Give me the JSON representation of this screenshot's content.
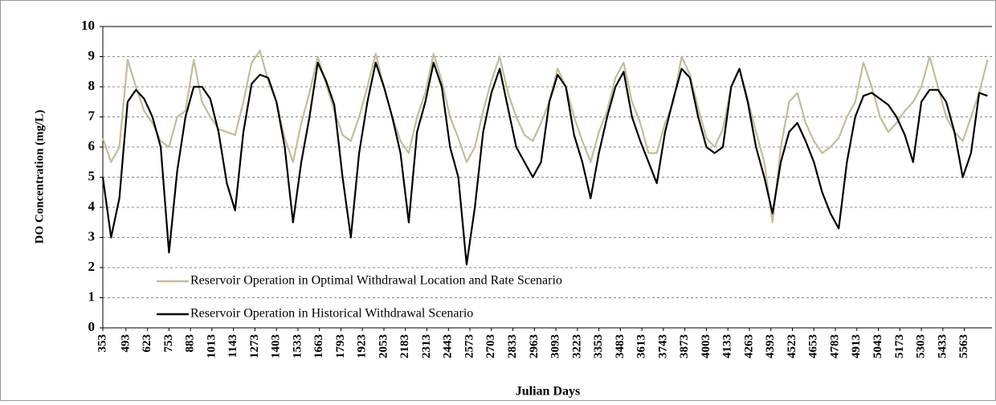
{
  "chart_data": {
    "type": "line",
    "xlabel": "Julian Days",
    "ylabel": "DO Concentration (mg/L)",
    "x": [
      353,
      403,
      453,
      503,
      553,
      603,
      653,
      703,
      753,
      803,
      853,
      903,
      953,
      1003,
      1053,
      1103,
      1153,
      1203,
      1253,
      1303,
      1353,
      1403,
      1453,
      1503,
      1553,
      1603,
      1653,
      1703,
      1753,
      1803,
      1853,
      1903,
      1953,
      2003,
      2053,
      2103,
      2153,
      2203,
      2253,
      2303,
      2353,
      2403,
      2453,
      2503,
      2553,
      2603,
      2653,
      2703,
      2753,
      2803,
      2853,
      2903,
      2953,
      3003,
      3053,
      3103,
      3153,
      3203,
      3253,
      3303,
      3353,
      3403,
      3453,
      3503,
      3553,
      3603,
      3653,
      3703,
      3753,
      3803,
      3853,
      3903,
      3953,
      4003,
      4053,
      4103,
      4153,
      4203,
      4253,
      4303,
      4353,
      4403,
      4453,
      4503,
      4553,
      4603,
      4653,
      4703,
      4753,
      4803,
      4853,
      4903,
      4953,
      5003,
      5053,
      5103,
      5153,
      5203,
      5253,
      5303,
      5353,
      5403,
      5453,
      5503,
      5553,
      5603,
      5653,
      5703
    ],
    "series": [
      {
        "name": "Reservoir Operation in Optimal Withdrawal Location and Rate Scenario",
        "color": "#c4bc98",
        "values": [
          6.3,
          5.5,
          6.0,
          8.9,
          8.0,
          7.2,
          6.8,
          6.2,
          6.0,
          7.0,
          7.2,
          8.9,
          7.5,
          7.0,
          6.6,
          6.5,
          6.4,
          7.5,
          8.8,
          9.2,
          8.2,
          7.5,
          6.3,
          5.5,
          6.8,
          7.8,
          9.0,
          8.1,
          7.2,
          6.4,
          6.2,
          7.0,
          8.0,
          9.1,
          8.0,
          7.0,
          6.2,
          5.8,
          7.0,
          7.8,
          9.1,
          8.2,
          7.0,
          6.3,
          5.5,
          6.0,
          7.2,
          8.2,
          9.0,
          7.8,
          7.0,
          6.4,
          6.2,
          6.8,
          7.5,
          8.6,
          8.0,
          7.0,
          6.2,
          5.5,
          6.5,
          7.2,
          8.3,
          8.8,
          7.5,
          6.8,
          5.8,
          5.8,
          6.8,
          7.5,
          9.0,
          8.4,
          7.3,
          6.3,
          6.0,
          6.6,
          8.0,
          8.6,
          7.6,
          6.5,
          5.5,
          3.5,
          6.0,
          7.5,
          7.8,
          6.8,
          6.2,
          5.8,
          6.0,
          6.3,
          7.0,
          7.5,
          8.8,
          8.0,
          7.0,
          6.5,
          6.8,
          7.2,
          7.5,
          8.0,
          9.0,
          8.0,
          7.0,
          6.5,
          6.2,
          7.0,
          7.8,
          8.9
        ]
      },
      {
        "name": "Reservoir Operation in Historical Withdrawal Scenario",
        "color": "#000000",
        "values": [
          5.0,
          3.0,
          4.3,
          7.5,
          7.9,
          7.6,
          7.0,
          6.0,
          2.5,
          5.2,
          7.0,
          8.0,
          8.0,
          7.6,
          6.5,
          4.8,
          3.9,
          6.5,
          8.1,
          8.4,
          8.3,
          7.5,
          6.0,
          3.5,
          5.5,
          7.0,
          8.8,
          8.2,
          7.4,
          5.0,
          3.0,
          5.8,
          7.5,
          8.8,
          8.0,
          7.0,
          5.8,
          3.5,
          6.5,
          7.5,
          8.8,
          8.0,
          6.0,
          5.0,
          2.1,
          4.0,
          6.5,
          7.8,
          8.6,
          7.3,
          6.0,
          5.5,
          5.0,
          5.5,
          7.5,
          8.4,
          8.0,
          6.4,
          5.5,
          4.3,
          5.8,
          7.0,
          8.0,
          8.5,
          7.0,
          6.2,
          5.5,
          4.8,
          6.5,
          7.6,
          8.6,
          8.3,
          7.0,
          6.0,
          5.8,
          6.0,
          8.0,
          8.6,
          7.5,
          6.0,
          5.0,
          3.8,
          5.5,
          6.5,
          6.8,
          6.2,
          5.5,
          4.5,
          3.8,
          3.3,
          5.5,
          7.0,
          7.7,
          7.8,
          7.6,
          7.4,
          7.0,
          6.4,
          5.5,
          7.5,
          7.9,
          7.9,
          7.5,
          6.5,
          5.0,
          5.8,
          7.8,
          7.7
        ]
      }
    ],
    "xlim": [
      353,
      5730
    ],
    "xticks": [
      353,
      493,
      623,
      753,
      883,
      1013,
      1143,
      1273,
      1403,
      1533,
      1663,
      1793,
      1923,
      2053,
      2183,
      2313,
      2443,
      2573,
      2703,
      2833,
      2963,
      3093,
      3223,
      3353,
      3483,
      3613,
      3743,
      3873,
      4003,
      4133,
      4263,
      4393,
      4523,
      4653,
      4783,
      4913,
      5043,
      5173,
      5303,
      5433,
      5563
    ],
    "ylim": [
      0,
      10
    ],
    "yticks": [
      0,
      1,
      2,
      3,
      4,
      5,
      6,
      7,
      8,
      9,
      10
    ],
    "grid": true,
    "legend": "lower left"
  }
}
